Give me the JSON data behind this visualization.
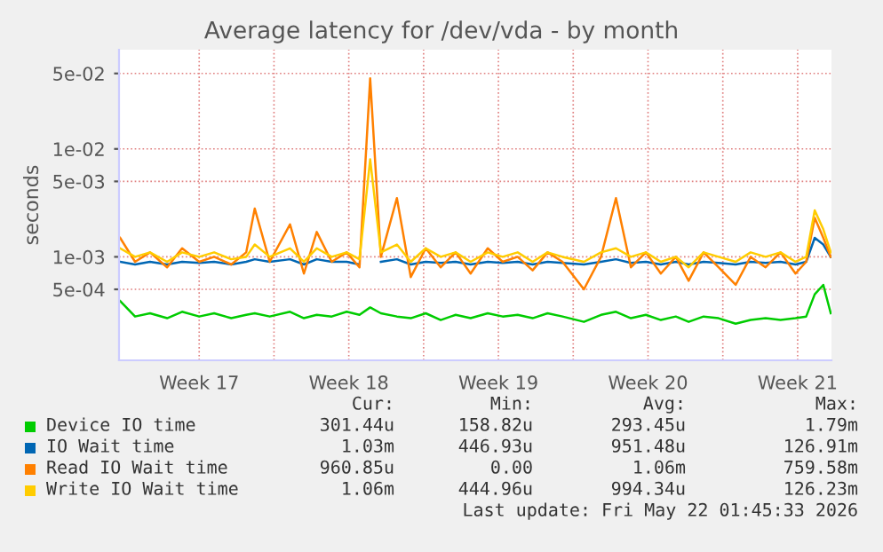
{
  "chart_data": {
    "type": "line",
    "title": "Average latency for /dev/vda - by month",
    "ylabel": "seconds",
    "log": "y",
    "grid": true,
    "legend": "bottom",
    "line_style": "solid",
    "marker": "none",
    "xlim": [
      "2026-04-18T18:00",
      "2026-05-22T02:00"
    ],
    "ylim": [
      0.00011,
      0.083
    ],
    "xticks": [
      {
        "value": "2026-04-22T12:00",
        "label": "Week 17"
      },
      {
        "value": "2026-04-26",
        "label": null
      },
      {
        "value": "2026-04-29T12:00",
        "label": "Week 18"
      },
      {
        "value": "2026-05-03",
        "label": null
      },
      {
        "value": "2026-05-06T12:00",
        "label": "Week 19"
      },
      {
        "value": "2026-05-10",
        "label": null
      },
      {
        "value": "2026-05-13T12:00",
        "label": "Week 20"
      },
      {
        "value": "2026-05-17",
        "label": null
      },
      {
        "value": "2026-05-20T12:00",
        "label": "Week 21"
      }
    ],
    "yticks": [
      {
        "value": 0.0005,
        "label": "5e-04"
      },
      {
        "value": 0.001,
        "label": "1e-03"
      },
      {
        "value": 0.005,
        "label": "5e-03"
      },
      {
        "value": 0.01,
        "label": "1e-02"
      },
      {
        "value": 0.05,
        "label": "5e-02"
      }
    ],
    "x": [
      "2026-04-18T19:12",
      "2026-04-19T12:00",
      "2026-04-20T04:48",
      "2026-04-21T00:00",
      "2026-04-21T16:48",
      "2026-04-22T12:00",
      "2026-04-23T04:48",
      "2026-04-24T00:00",
      "2026-04-24T16:48",
      "2026-04-25T02:24",
      "2026-04-25T19:12",
      "2026-04-26T18:00",
      "2026-04-27T09:36",
      "2026-04-28T00:00",
      "2026-04-28T16:48",
      "2026-04-29T09:36",
      "2026-04-30T00:00",
      "2026-04-30T12:00",
      "2026-05-01T00:00",
      "2026-05-01T18:00",
      "2026-05-02T09:36",
      "2026-05-03T02:24",
      "2026-05-03T19:12",
      "2026-05-04T12:00",
      "2026-05-05T04:48",
      "2026-05-06T00:00",
      "2026-05-06T16:48",
      "2026-05-07T09:36",
      "2026-05-08T02:24",
      "2026-05-08T19:12",
      "2026-05-09T12:00",
      "2026-05-10T12:00",
      "2026-05-11T07:12",
      "2026-05-12T00:00",
      "2026-05-12T16:48",
      "2026-05-13T09:36",
      "2026-05-14T02:24",
      "2026-05-14T19:12",
      "2026-05-15T09:36",
      "2026-05-16T02:24",
      "2026-05-16T19:12",
      "2026-05-17T14:24",
      "2026-05-18T07:12",
      "2026-05-19T00:00",
      "2026-05-19T16:48",
      "2026-05-20T09:36",
      "2026-05-20T21:36",
      "2026-05-21T07:12",
      "2026-05-21T16:48",
      "2026-05-22T01:12"
    ],
    "series": [
      {
        "name": "Device IO time",
        "color": "#00cc00",
        "values": [
          0.00039,
          0.00028,
          0.0003,
          0.00027,
          0.00031,
          0.00028,
          0.0003,
          0.00027,
          0.00029,
          0.0003,
          0.00028,
          0.00031,
          0.00027,
          0.00029,
          0.00028,
          0.00031,
          0.00029,
          0.00034,
          0.0003,
          0.00028,
          0.00027,
          0.0003,
          0.00026,
          0.00029,
          0.00027,
          0.0003,
          0.00028,
          0.00029,
          0.00027,
          0.0003,
          0.00028,
          0.00025,
          0.00029,
          0.00031,
          0.00027,
          0.00029,
          0.00026,
          0.00028,
          0.00025,
          0.00028,
          0.00027,
          0.00024,
          0.00026,
          0.00027,
          0.00026,
          0.00027,
          0.00028,
          0.00045,
          0.00055,
          0.0003
        ]
      },
      {
        "name": "IO Wait time",
        "color": "#0066b3",
        "values": [
          0.0009,
          0.00085,
          0.0009,
          0.00085,
          0.0009,
          0.00088,
          0.0009,
          0.00085,
          0.0009,
          0.00095,
          0.0009,
          0.00095,
          0.00085,
          0.00095,
          0.0009,
          0.0009,
          0.00085,
          null,
          0.0009,
          0.00095,
          0.00085,
          0.0009,
          0.00088,
          0.0009,
          0.00085,
          0.0009,
          0.00088,
          0.0009,
          0.00085,
          0.0009,
          0.00088,
          0.00085,
          0.0009,
          0.00095,
          0.00088,
          0.0009,
          0.00085,
          0.0009,
          0.00085,
          0.0009,
          0.00088,
          0.00085,
          0.0009,
          0.00088,
          0.0009,
          0.00085,
          0.0009,
          0.0015,
          0.0013,
          0.001
        ]
      },
      {
        "name": "Read IO Wait time",
        "color": "#ff8000",
        "values": [
          0.0015,
          0.0009,
          0.0011,
          0.0008,
          0.0012,
          0.0009,
          0.001,
          0.00085,
          0.0011,
          0.0028,
          0.0009,
          0.002,
          0.0007,
          0.0017,
          0.0009,
          0.0011,
          0.0008,
          0.045,
          0.001,
          0.0035,
          0.00065,
          0.0012,
          0.0008,
          0.0011,
          0.0007,
          0.0012,
          0.0009,
          0.001,
          0.00075,
          0.0011,
          0.0009,
          0.0005,
          0.001,
          0.0035,
          0.0008,
          0.0011,
          0.0007,
          0.001,
          0.0006,
          0.0011,
          0.0008,
          0.00055,
          0.001,
          0.0008,
          0.0011,
          0.0007,
          0.0009,
          0.0023,
          0.0015,
          0.001
        ]
      },
      {
        "name": "Write IO Wait time",
        "color": "#ffcc00",
        "values": [
          0.0012,
          0.001,
          0.0011,
          0.0009,
          0.0011,
          0.001,
          0.0011,
          0.00095,
          0.001,
          0.0013,
          0.001,
          0.0012,
          0.0009,
          0.0012,
          0.001,
          0.0011,
          0.00095,
          0.008,
          0.0011,
          0.0013,
          0.0009,
          0.0012,
          0.001,
          0.0011,
          0.0009,
          0.0011,
          0.001,
          0.0011,
          0.0009,
          0.0011,
          0.001,
          0.0009,
          0.0011,
          0.0012,
          0.001,
          0.0011,
          0.0009,
          0.001,
          0.0008,
          0.0011,
          0.001,
          0.0009,
          0.0011,
          0.001,
          0.0011,
          0.0009,
          0.001,
          0.0027,
          0.0018,
          0.0011
        ]
      }
    ],
    "annotations": [
      "Cur:",
      "Min:",
      "Avg:",
      "Max:",
      "301.44u",
      "158.82u",
      "293.45u",
      "1.79m",
      "1.03m",
      "446.93u",
      "951.48u",
      "126.91m",
      "960.85u",
      "0.00",
      "1.06m",
      "759.58m",
      "1.06m",
      "444.96u",
      "994.34u",
      "126.23m",
      "Last update: Fri May 22 01:45:33 2026"
    ]
  }
}
